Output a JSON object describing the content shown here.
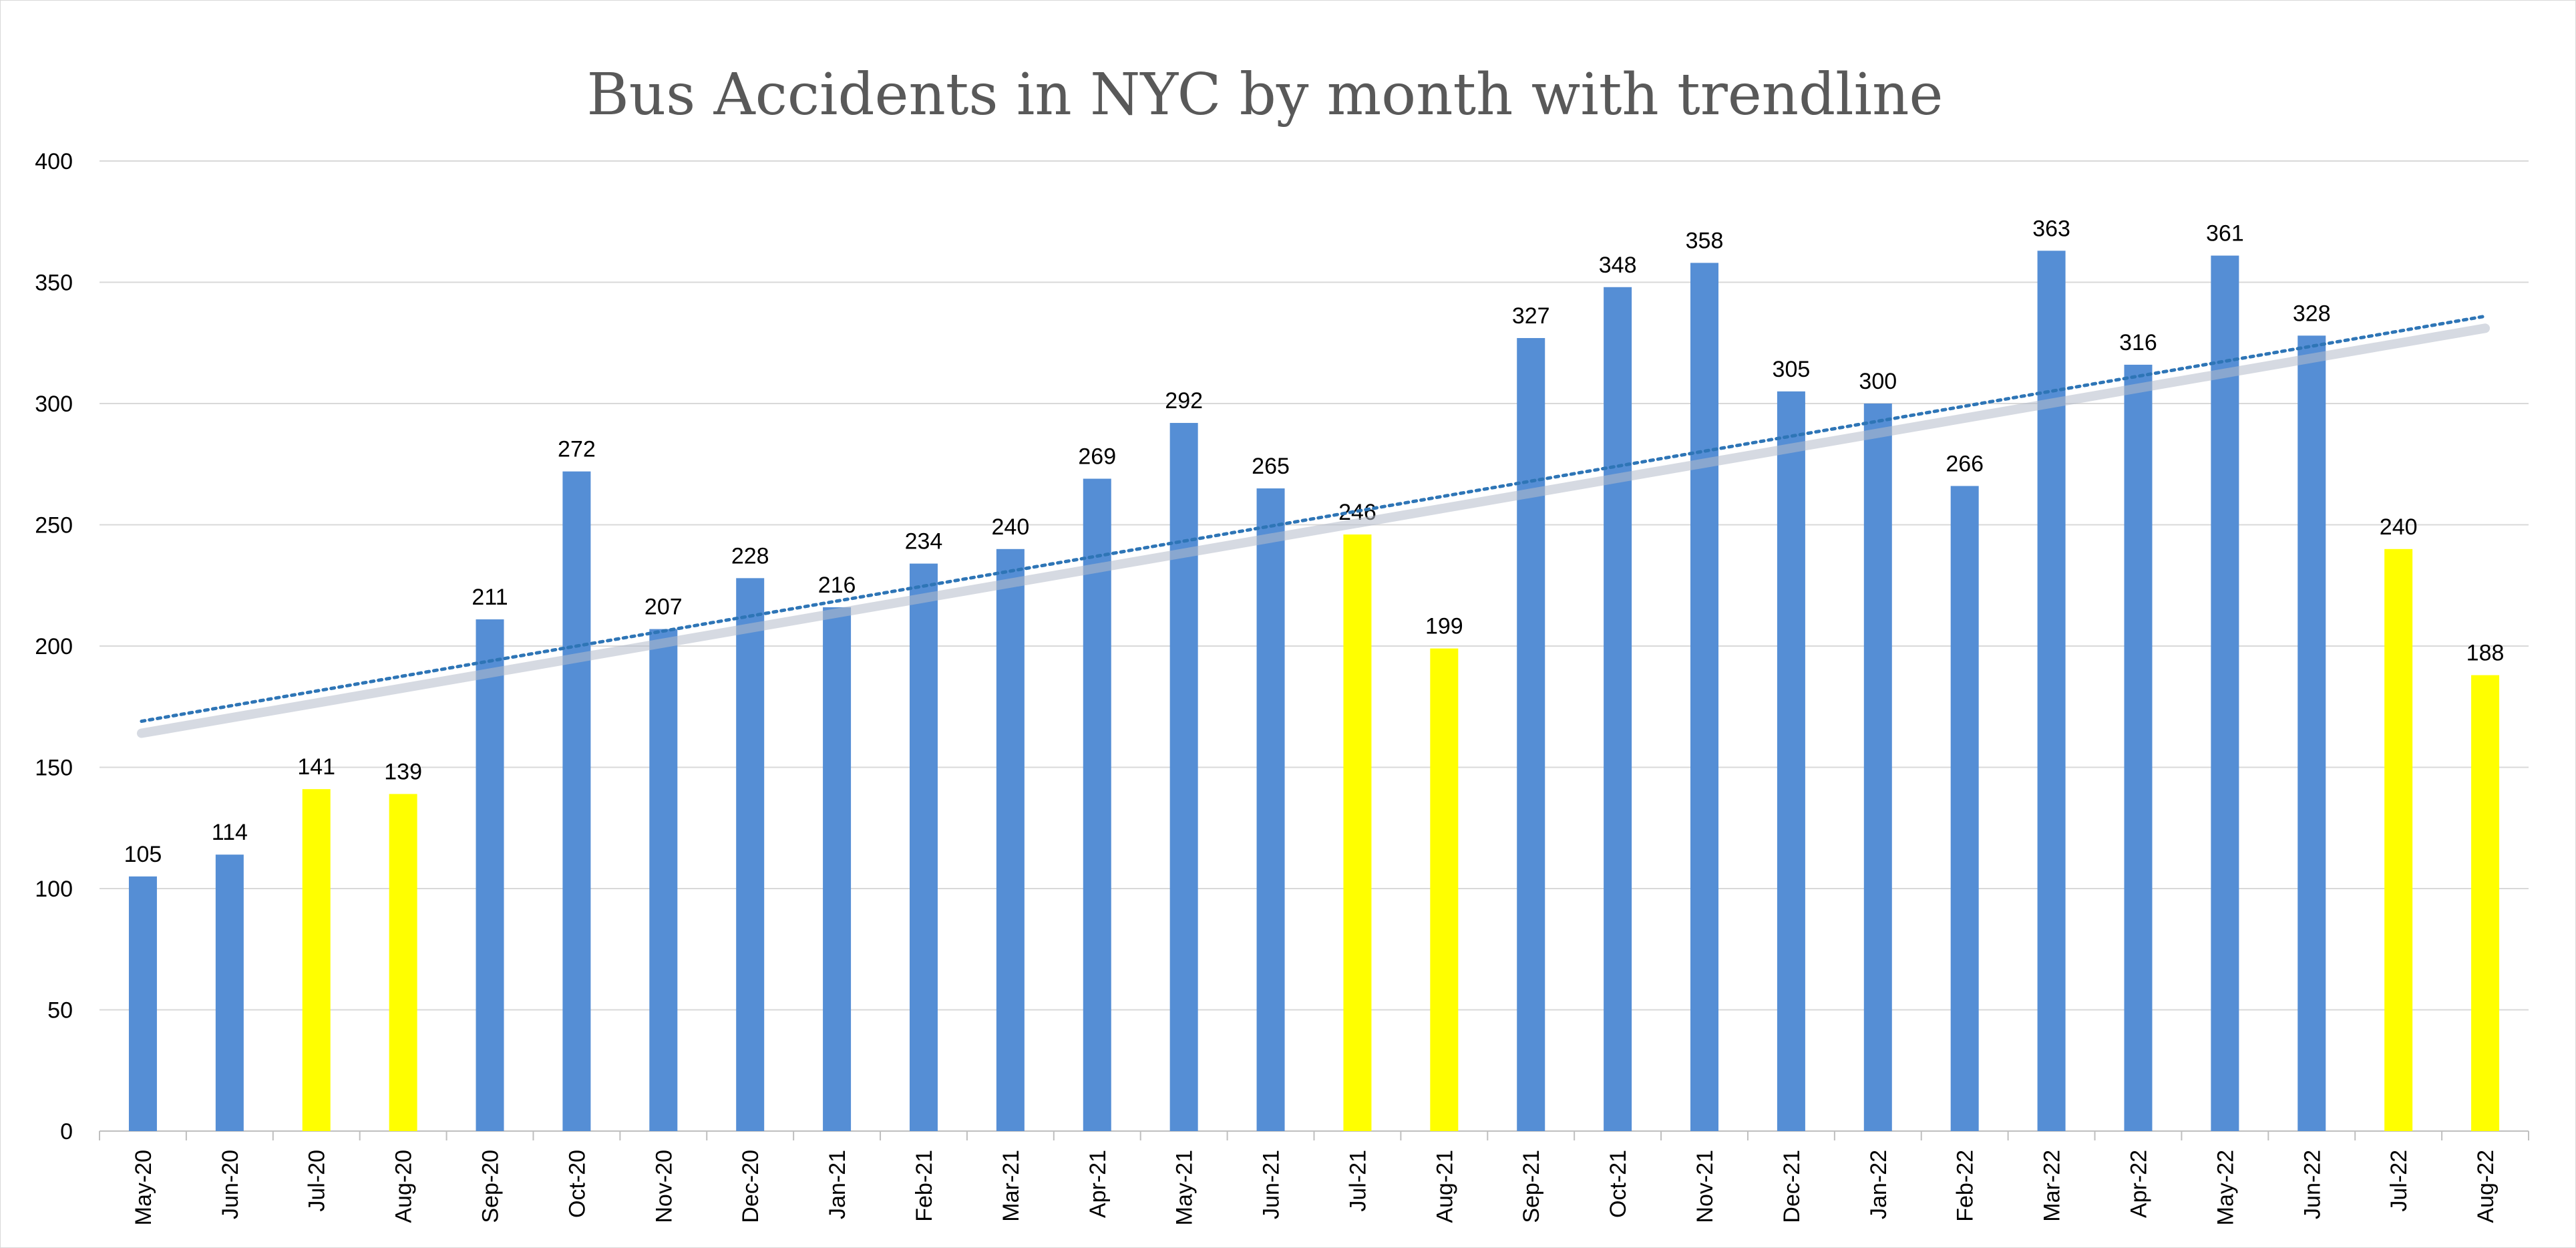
{
  "chart_data": {
    "type": "bar",
    "title": "Bus Accidents in NYC by month with trendline",
    "xlabel": "",
    "ylabel": "",
    "ylim": [
      0,
      400
    ],
    "y_ticks": [
      0,
      50,
      100,
      150,
      200,
      250,
      300,
      350,
      400
    ],
    "grid": true,
    "legend": "none",
    "categories": [
      "May-20",
      "Jun-20",
      "Jul-20",
      "Aug-20",
      "Sep-20",
      "Oct-20",
      "Nov-20",
      "Dec-20",
      "Jan-21",
      "Feb-21",
      "Mar-21",
      "Apr-21",
      "May-21",
      "Jun-21",
      "Jul-21",
      "Aug-21",
      "Sep-21",
      "Oct-21",
      "Nov-21",
      "Dec-21",
      "Jan-22",
      "Feb-22",
      "Mar-22",
      "Apr-22",
      "May-22",
      "Jun-22",
      "Jul-22",
      "Aug-22"
    ],
    "values": [
      105,
      114,
      141,
      139,
      211,
      272,
      207,
      228,
      216,
      234,
      240,
      269,
      292,
      265,
      246,
      199,
      327,
      348,
      358,
      305,
      300,
      266,
      363,
      316,
      361,
      328,
      240,
      188
    ],
    "highlighted": [
      false,
      false,
      true,
      true,
      false,
      false,
      false,
      false,
      false,
      false,
      false,
      false,
      false,
      false,
      true,
      true,
      false,
      false,
      false,
      false,
      false,
      false,
      false,
      false,
      false,
      false,
      true,
      true
    ],
    "colors": {
      "bar": "#558ed5",
      "highlight": "#ffff00",
      "trendline": "#2e75b6",
      "grid": "#d9d9d9"
    },
    "trendline": {
      "type": "linear",
      "style": "dotted",
      "start_value": 169,
      "end_value": 336
    }
  }
}
